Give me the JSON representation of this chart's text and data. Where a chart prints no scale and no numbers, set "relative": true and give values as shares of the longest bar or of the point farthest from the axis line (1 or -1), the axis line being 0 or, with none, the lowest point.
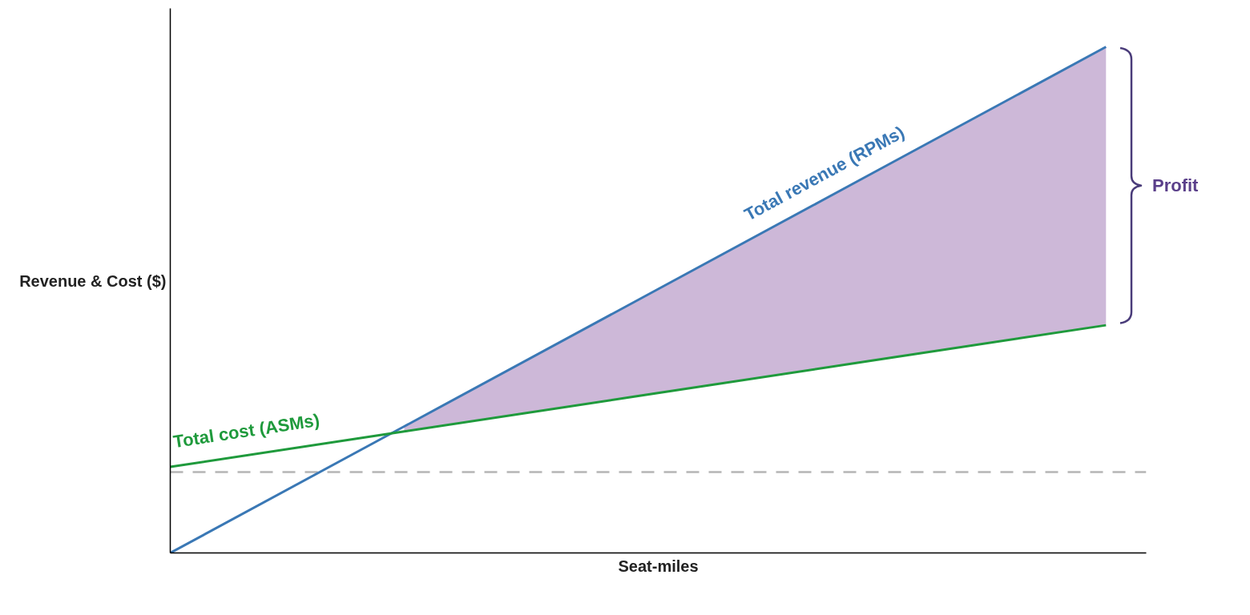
{
  "chart_data": {
    "type": "line",
    "relative": true,
    "xlabel": "Seat-miles",
    "ylabel": "Revenue & Cost ($)",
    "categories": [
      null,
      null,
      null,
      null,
      null
    ],
    "series": [
      {
        "name": "Total revenue (RPMs)",
        "color": "#3a78b5",
        "values": [
          0,
          0.25,
          0.5,
          0.75,
          1
        ],
        "lower": [
          null,
          0.24,
          0.31,
          0.38,
          0.45
        ],
        "upper": [
          null,
          0.25,
          0.5,
          0.75,
          1
        ]
      },
      {
        "name": "Total cost (ASMs)",
        "color": "#1f9a3c",
        "values": [
          0.17,
          0.24,
          0.31,
          0.38,
          0.45
        ]
      }
    ],
    "ref_lines": [
      {
        "axis": "y",
        "value": 0.16,
        "color": "#b5b5b5",
        "line_style": "dashed"
      }
    ],
    "annotations": [
      "Profit"
    ],
    "marker": "none",
    "line_style": "solid"
  }
}
